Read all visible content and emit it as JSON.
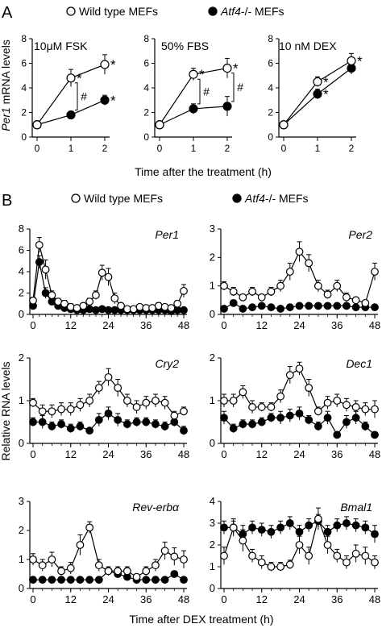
{
  "panel_a": {
    "label": "A",
    "legend": {
      "wild": "Wild type MEFs",
      "mutant_prefix": "Atf4",
      "mutant_suffix": "-/- MEFs"
    },
    "ylabel_prefix": "Per1",
    "ylabel_suffix": " mRNA levels",
    "xlabel": "Time after the treatment (h)"
  },
  "panel_b": {
    "label": "B",
    "legend": {
      "wild": "Wild type MEFs",
      "mutant_prefix": "Atf4",
      "mutant_suffix": "-/- MEFs"
    },
    "ylabel": "Relative RNA levels",
    "xlabel": "Time after DEX treatment (h)"
  },
  "colors": {
    "wild_fill": "#ffffff",
    "mutant_fill": "#000000",
    "line": "#000000"
  },
  "chart_data": [
    {
      "type": "line",
      "panel": "A",
      "title": "10μM FSK",
      "x": [
        0,
        1,
        2
      ],
      "xticks": [
        "0",
        "1",
        "2"
      ],
      "ylim": [
        0,
        8
      ],
      "yticks": [
        0,
        2,
        4,
        6,
        8
      ],
      "series": [
        {
          "name": "Wild type MEFs",
          "values": [
            1.0,
            4.8,
            5.9
          ],
          "errors": [
            0.3,
            0.7,
            0.8
          ],
          "markers": [
            "",
            "*",
            "*"
          ]
        },
        {
          "name": "Atf4-/- MEFs",
          "values": [
            1.0,
            1.8,
            3.0
          ],
          "errors": [
            0.2,
            0.3,
            0.4
          ],
          "markers": [
            "",
            "",
            "*"
          ]
        }
      ],
      "annotations": [
        "#"
      ]
    },
    {
      "type": "line",
      "panel": "A",
      "title": "50% FBS",
      "x": [
        0,
        1,
        2
      ],
      "xticks": [
        "0",
        "1",
        "2"
      ],
      "ylim": [
        0,
        8
      ],
      "yticks": [
        0,
        2,
        4,
        6,
        8
      ],
      "series": [
        {
          "name": "Wild type MEFs",
          "values": [
            1.0,
            5.1,
            5.6
          ],
          "errors": [
            0.3,
            0.5,
            0.8
          ],
          "markers": [
            "",
            "*",
            "*"
          ]
        },
        {
          "name": "Atf4-/- MEFs",
          "values": [
            1.0,
            2.3,
            2.5
          ],
          "errors": [
            0.2,
            0.4,
            0.8
          ],
          "markers": [
            "",
            "",
            ""
          ]
        }
      ],
      "annotations": [
        "#",
        "#"
      ]
    },
    {
      "type": "line",
      "panel": "A",
      "title": "10 nM DEX",
      "x": [
        0,
        1,
        2
      ],
      "xticks": [
        "0",
        "1",
        "2"
      ],
      "ylim": [
        0,
        8
      ],
      "yticks": [
        0,
        2,
        4,
        6,
        8
      ],
      "series": [
        {
          "name": "Wild type MEFs",
          "values": [
            1.0,
            4.5,
            6.2
          ],
          "errors": [
            0.3,
            0.4,
            0.6
          ],
          "markers": [
            "",
            "*",
            "*"
          ]
        },
        {
          "name": "Atf4-/- MEFs",
          "values": [
            1.0,
            3.5,
            5.6
          ],
          "errors": [
            0.2,
            0.4,
            0.5
          ],
          "markers": [
            "",
            "*",
            ""
          ]
        }
      ]
    },
    {
      "type": "line",
      "panel": "B",
      "title": "Per1",
      "x": [
        0,
        2,
        4,
        6,
        8,
        10,
        12,
        14,
        16,
        18,
        20,
        22,
        24,
        26,
        28,
        30,
        32,
        34,
        36,
        38,
        40,
        42,
        44,
        46,
        48
      ],
      "xticks": [
        "0",
        "12",
        "24",
        "36",
        "48"
      ],
      "ylim": [
        0,
        8
      ],
      "yticks": [
        0,
        2,
        4,
        6,
        8
      ],
      "series": [
        {
          "name": "Wild type MEFs",
          "values": [
            1.3,
            6.5,
            4.2,
            1.8,
            1.2,
            1.0,
            0.7,
            0.6,
            0.8,
            1.2,
            1.8,
            3.9,
            3.5,
            1.5,
            0.8,
            0.5,
            0.5,
            0.7,
            0.6,
            0.6,
            0.8,
            0.7,
            0.6,
            1.0,
            2.2
          ],
          "errors": [
            0.3,
            0.7,
            0.9,
            0.4,
            0.3,
            0.3,
            0.3,
            0.2,
            0.2,
            0.3,
            0.4,
            0.7,
            0.8,
            0.5,
            0.2,
            0.2,
            0.2,
            0.2,
            0.2,
            0.2,
            0.3,
            0.2,
            0.2,
            0.3,
            0.6
          ]
        },
        {
          "name": "Atf4-/- MEFs",
          "values": [
            0.8,
            4.9,
            2.0,
            1.2,
            0.8,
            0.6,
            0.5,
            0.4,
            0.4,
            0.5,
            0.4,
            0.5,
            0.4,
            0.4,
            0.4,
            0.4,
            0.4,
            0.4,
            0.4,
            0.4,
            0.4,
            0.4,
            0.3,
            0.4,
            0.4
          ],
          "errors": [
            0.2,
            0.6,
            0.5,
            0.3,
            0.2,
            0.2,
            0.1,
            0.1,
            0.1,
            0.1,
            0.1,
            0.1,
            0.1,
            0.1,
            0.1,
            0.1,
            0.1,
            0.1,
            0.1,
            0.1,
            0.1,
            0.1,
            0.1,
            0.1,
            0.1
          ]
        }
      ]
    },
    {
      "type": "line",
      "panel": "B",
      "title": "Per2",
      "x": [
        0,
        3,
        6,
        9,
        12,
        15,
        18,
        21,
        24,
        27,
        30,
        33,
        36,
        39,
        42,
        45,
        48
      ],
      "xticks": [
        "0",
        "12",
        "24",
        "36",
        "48"
      ],
      "ylim": [
        0,
        3
      ],
      "yticks": [
        0,
        1,
        2,
        3
      ],
      "series": [
        {
          "name": "Wild type MEFs",
          "values": [
            1.0,
            0.8,
            0.6,
            0.8,
            0.6,
            0.8,
            1.0,
            1.5,
            2.2,
            1.8,
            1.0,
            0.7,
            1.0,
            0.6,
            0.5,
            0.4,
            1.5
          ],
          "errors": [
            0.15,
            0.15,
            0.1,
            0.15,
            0.1,
            0.15,
            0.2,
            0.3,
            0.35,
            0.3,
            0.2,
            0.15,
            0.2,
            0.15,
            0.1,
            0.1,
            0.3
          ]
        },
        {
          "name": "Atf4-/- MEFs",
          "values": [
            0.2,
            0.4,
            0.2,
            0.25,
            0.3,
            0.25,
            0.2,
            0.25,
            0.3,
            0.3,
            0.3,
            0.3,
            0.3,
            0.3,
            0.25,
            0.25,
            0.25
          ],
          "errors": [
            0.05,
            0.1,
            0.05,
            0.05,
            0.05,
            0.05,
            0.05,
            0.05,
            0.05,
            0.05,
            0.05,
            0.05,
            0.05,
            0.05,
            0.05,
            0.05,
            0.05
          ]
        }
      ]
    },
    {
      "type": "line",
      "panel": "B",
      "title": "Cry2",
      "x": [
        0,
        3,
        6,
        9,
        12,
        15,
        18,
        21,
        24,
        27,
        30,
        33,
        36,
        39,
        42,
        45,
        48
      ],
      "xticks": [
        "0",
        "12",
        "24",
        "36",
        "48"
      ],
      "ylim": [
        0,
        2
      ],
      "yticks": [
        0,
        1,
        2
      ],
      "series": [
        {
          "name": "Wild type MEFs",
          "values": [
            0.95,
            0.75,
            0.75,
            0.8,
            0.8,
            0.9,
            1.0,
            1.3,
            1.55,
            1.3,
            1.0,
            0.85,
            0.95,
            1.0,
            0.95,
            0.65,
            0.75
          ],
          "errors": [
            0.1,
            0.15,
            0.15,
            0.15,
            0.15,
            0.15,
            0.15,
            0.15,
            0.2,
            0.2,
            0.15,
            0.15,
            0.15,
            0.15,
            0.15,
            0.1,
            0.1
          ]
        },
        {
          "name": "Atf4-/- MEFs",
          "values": [
            0.5,
            0.5,
            0.4,
            0.45,
            0.35,
            0.4,
            0.3,
            0.55,
            0.7,
            0.55,
            0.45,
            0.5,
            0.5,
            0.45,
            0.4,
            0.5,
            0.3
          ],
          "errors": [
            0.1,
            0.15,
            0.1,
            0.1,
            0.1,
            0.1,
            0.05,
            0.15,
            0.15,
            0.15,
            0.1,
            0.1,
            0.1,
            0.1,
            0.1,
            0.1,
            0.1
          ]
        }
      ]
    },
    {
      "type": "line",
      "panel": "B",
      "title": "Dec1",
      "x": [
        0,
        3,
        6,
        9,
        12,
        15,
        18,
        21,
        24,
        27,
        30,
        33,
        36,
        39,
        42,
        45,
        48
      ],
      "xticks": [
        "0",
        "12",
        "24",
        "36",
        "48"
      ],
      "ylim": [
        0,
        2
      ],
      "yticks": [
        0,
        1,
        2
      ],
      "series": [
        {
          "name": "Wild type MEFs",
          "values": [
            1.0,
            1.0,
            1.2,
            0.85,
            0.85,
            0.85,
            1.1,
            1.6,
            1.75,
            1.3,
            0.75,
            0.95,
            1.0,
            0.9,
            0.85,
            0.8,
            0.8
          ],
          "errors": [
            0.15,
            0.15,
            0.15,
            0.15,
            0.1,
            0.1,
            0.15,
            0.2,
            0.15,
            0.2,
            0.1,
            0.15,
            0.15,
            0.15,
            0.15,
            0.15,
            0.2
          ]
        },
        {
          "name": "Atf4-/- MEFs",
          "values": [
            0.6,
            0.35,
            0.45,
            0.45,
            0.5,
            0.6,
            0.6,
            0.65,
            0.7,
            0.55,
            0.4,
            0.6,
            0.2,
            0.5,
            0.6,
            0.4,
            0.2
          ],
          "errors": [
            0.15,
            0.1,
            0.1,
            0.1,
            0.1,
            0.1,
            0.15,
            0.15,
            0.15,
            0.1,
            0.1,
            0.15,
            0.05,
            0.15,
            0.15,
            0.1,
            0.05
          ]
        }
      ]
    },
    {
      "type": "line",
      "panel": "B",
      "title": "Rev-erbα",
      "x": [
        0,
        3,
        6,
        9,
        12,
        15,
        18,
        21,
        24,
        27,
        30,
        33,
        36,
        39,
        42,
        45,
        48
      ],
      "xticks": [
        "0",
        "12",
        "24",
        "36",
        "48"
      ],
      "ylim": [
        0,
        3
      ],
      "yticks": [
        0,
        1,
        2,
        3
      ],
      "series": [
        {
          "name": "Wild type MEFs",
          "values": [
            1.0,
            0.8,
            1.0,
            0.6,
            0.7,
            1.5,
            2.1,
            0.8,
            0.6,
            0.6,
            0.6,
            0.4,
            0.6,
            0.8,
            1.3,
            1.1,
            1.0
          ],
          "errors": [
            0.2,
            0.2,
            0.25,
            0.15,
            0.2,
            0.35,
            0.2,
            0.2,
            0.15,
            0.15,
            0.15,
            0.1,
            0.15,
            0.2,
            0.3,
            0.3,
            0.3
          ]
        },
        {
          "name": "Atf4-/- MEFs",
          "values": [
            0.3,
            0.3,
            0.3,
            0.3,
            0.3,
            0.3,
            0.3,
            0.3,
            0.6,
            0.5,
            0.4,
            0.3,
            0.3,
            0.3,
            0.3,
            0.5,
            0.3
          ],
          "errors": [
            0.1,
            0.1,
            0.1,
            0.1,
            0.1,
            0.1,
            0.1,
            0.1,
            0.15,
            0.1,
            0.1,
            0.1,
            0.1,
            0.1,
            0.1,
            0.1,
            0.1
          ]
        }
      ]
    },
    {
      "type": "line",
      "panel": "B",
      "title": "Bmal1",
      "x": [
        0,
        3,
        6,
        9,
        12,
        15,
        18,
        21,
        24,
        27,
        30,
        33,
        36,
        39,
        42,
        45,
        48
      ],
      "xticks": [
        "0",
        "12",
        "24",
        "36",
        "48"
      ],
      "ylim": [
        0,
        4
      ],
      "yticks": [
        0,
        1,
        2,
        3,
        4
      ],
      "series": [
        {
          "name": "Wild type MEFs",
          "values": [
            1.5,
            2.8,
            2.2,
            1.5,
            1.2,
            1.0,
            1.0,
            1.1,
            2.0,
            1.5,
            3.2,
            2.0,
            1.5,
            1.2,
            1.6,
            1.5,
            1.2
          ],
          "errors": [
            0.4,
            0.4,
            0.5,
            0.3,
            0.3,
            0.2,
            0.2,
            0.2,
            0.4,
            0.4,
            0.5,
            0.4,
            0.3,
            0.3,
            0.4,
            0.4,
            0.3
          ]
        },
        {
          "name": "Atf4-/- MEFs",
          "values": [
            2.8,
            2.8,
            2.5,
            2.8,
            2.7,
            2.6,
            2.8,
            3.0,
            2.6,
            2.9,
            3.1,
            2.6,
            2.9,
            3.0,
            2.9,
            2.8,
            2.5
          ],
          "errors": [
            0.3,
            0.3,
            0.4,
            0.3,
            0.3,
            0.3,
            0.3,
            0.3,
            0.3,
            0.3,
            0.3,
            0.3,
            0.3,
            0.3,
            0.3,
            0.3,
            0.4
          ]
        }
      ]
    }
  ]
}
